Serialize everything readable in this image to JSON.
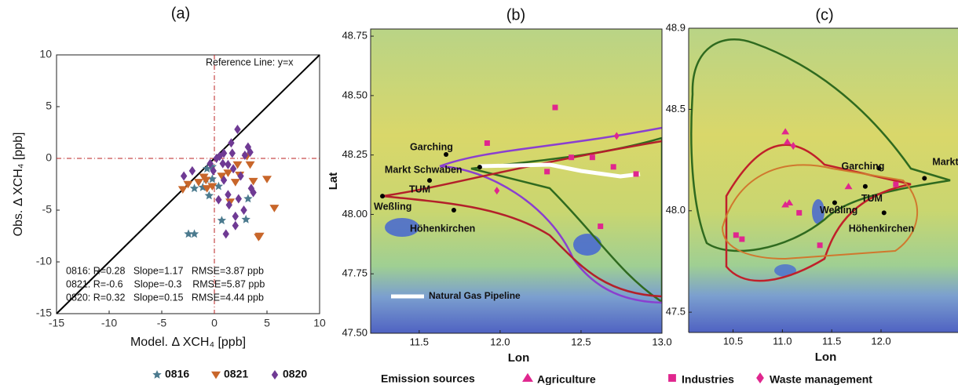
{
  "chart_data": [
    {
      "type": "scatter",
      "title": "(a)",
      "x_label": "Model. Δ XCH₄ [ppb]",
      "y_label": "Obs. Δ XCH₄ [ppb]",
      "xlim": [
        -15,
        10
      ],
      "ylim": [
        -15,
        10
      ],
      "xticks": [
        -15,
        -10,
        -5,
        0,
        5,
        10
      ],
      "yticks": [
        -15,
        -10,
        -5,
        0,
        5,
        10
      ],
      "reference_line": "Reference Line: y=x",
      "stats": [
        "0816: R=0.28   Slope=1.17   RMSE=3.87 ppb",
        "0821: R=-0.6    Slope=-0.3    RMSE=5.87 ppb",
        "0820: R=0.32   Slope=0.15   RMSE=4.44 ppb"
      ],
      "series": [
        {
          "name": "0816",
          "color": "#4b7a8e",
          "marker": "star",
          "x": [
            -2.46,
            -1.9,
            -0.5,
            0.7,
            3.0,
            3.2,
            -1.1,
            -0.8,
            -0.7,
            -0.2,
            0.4,
            -0.2,
            -1.9
          ],
          "y": [
            -7.3,
            -7.3,
            -3.6,
            -6.0,
            -5.9,
            -3.9,
            -2.8,
            -2.0,
            -1.0,
            -0.8,
            -2.7,
            -2.0,
            -2.9
          ]
        },
        {
          "name": "0821",
          "color": "#c8662a",
          "marker": "triangle-down",
          "x": [
            -3.0,
            -2.5,
            -1.5,
            -0.7,
            -0.8,
            -0.2,
            1.3,
            1.5,
            2.0,
            2.2,
            2.4,
            3.1,
            3.4,
            4.2,
            5.0,
            5.7,
            0.7,
            -1.0,
            3.7,
            4.3
          ],
          "y": [
            -3.0,
            -2.5,
            -2.3,
            -2.9,
            -2.1,
            -2.7,
            -1.4,
            -4.2,
            -2.3,
            -0.6,
            -1.6,
            0.2,
            -0.6,
            -7.6,
            -2.0,
            -4.8,
            -1.7,
            -1.8,
            -2.2,
            -7.5
          ]
        },
        {
          "name": "0820",
          "color": "#6f3a94",
          "marker": "diamond",
          "x": [
            -2.9,
            -2.1,
            -0.1,
            0.5,
            0.8,
            1.3,
            1.6,
            2.2,
            1.7,
            0.9,
            1.3,
            1.4,
            2.0,
            1.1,
            2.3,
            2.5,
            2.9,
            3.2,
            3.4,
            3.5,
            3.7,
            2.8,
            2.0,
            0.2,
            -0.4,
            0.4,
            0.9,
            1.8
          ],
          "y": [
            -1.7,
            -1.2,
            -1.2,
            0.2,
            -0.5,
            -0.6,
            1.5,
            2.8,
            0.5,
            -2.1,
            -3.5,
            -4.5,
            -5.6,
            -7.3,
            -3.9,
            -1.7,
            0.3,
            1.1,
            0.6,
            -2.9,
            -3.3,
            -5.0,
            -6.5,
            0.0,
            -0.5,
            -4.0,
            0.5,
            -1.0
          ]
        }
      ]
    },
    {
      "type": "map",
      "title": "(b)",
      "x_label": "Lon",
      "y_label": "Lat",
      "xlim": [
        11.2,
        13.0
      ],
      "ylim": [
        47.5,
        48.78
      ],
      "xticks": [
        11.5,
        {
          "value": 12,
          "label": "12.0"
        },
        12.5,
        {
          "value": 13,
          "label": "13.0"
        }
      ],
      "yticks": [
        {
          "value": 47.5,
          "label": "47.50"
        },
        47.75,
        {
          "value": 48,
          "label": "48.00"
        },
        48.25,
        {
          "value": 48.5,
          "label": "48.50"
        },
        48.75
      ],
      "cities": {
        "labels": [
          "Garching",
          "Markt Schwaben",
          "TUM",
          "Weßling",
          "Höhenkirchen"
        ],
        "x": [
          11.666,
          11.874,
          11.564,
          11.273,
          11.714
        ],
        "y": [
          48.252,
          48.199,
          48.143,
          48.077,
          48.018
        ]
      },
      "series": [
        {
          "color": "#e0268e",
          "marker": "square",
          "x": [
            12.34,
            11.92,
            12.44,
            12.57,
            12.7,
            12.84,
            12.29,
            12.62
          ],
          "y": [
            48.45,
            48.3,
            48.24,
            48.24,
            48.2,
            48.17,
            48.18,
            47.95
          ]
        },
        {
          "color": "#e0268e",
          "marker": "diamond",
          "x": [
            11.98,
            12.72
          ],
          "y": [
            48.1,
            48.33
          ]
        }
      ],
      "pipeline_label": "Natural Gas Pipeline"
    },
    {
      "type": "map",
      "title": "(c)",
      "x_label": "Lon",
      "xlim": [
        10.05,
        12.78
      ],
      "ylim": [
        47.4,
        48.9
      ],
      "xticks": [
        10.5,
        {
          "value": 11,
          "label": "11.0"
        },
        11.5,
        {
          "value": 12,
          "label": "12.0"
        }
      ],
      "yticks": [
        47.5,
        {
          "value": 48,
          "label": "48.0"
        },
        48.5,
        48.9
      ],
      "cities": {
        "labels": [
          "Garching",
          "Markt Schwaben",
          "TUM",
          "Weßling",
          "Höhenkirchen"
        ],
        "x": [
          11.98,
          12.44,
          11.84,
          11.53,
          12.03
        ],
        "y": [
          48.21,
          48.16,
          48.12,
          48.04,
          47.99
        ]
      },
      "series": [
        {
          "name": "Agriculture",
          "color": "#e0268e",
          "marker": "triangle",
          "x": [
            11.03,
            11.05,
            11.03,
            11.07,
            11.67
          ],
          "y": [
            48.39,
            48.34,
            48.03,
            48.04,
            48.12
          ]
        },
        {
          "name": "Industries",
          "color": "#e0268e",
          "marker": "square",
          "x": [
            11.17,
            10.53,
            10.59,
            11.38,
            12.15
          ],
          "y": [
            47.99,
            47.88,
            47.86,
            47.83,
            48.13
          ]
        },
        {
          "name": "Waste management",
          "color": "#e0268e",
          "marker": "diamond",
          "x": [
            11.11
          ],
          "y": [
            48.32
          ]
        }
      ],
      "legend_title": "Emission sources"
    }
  ]
}
